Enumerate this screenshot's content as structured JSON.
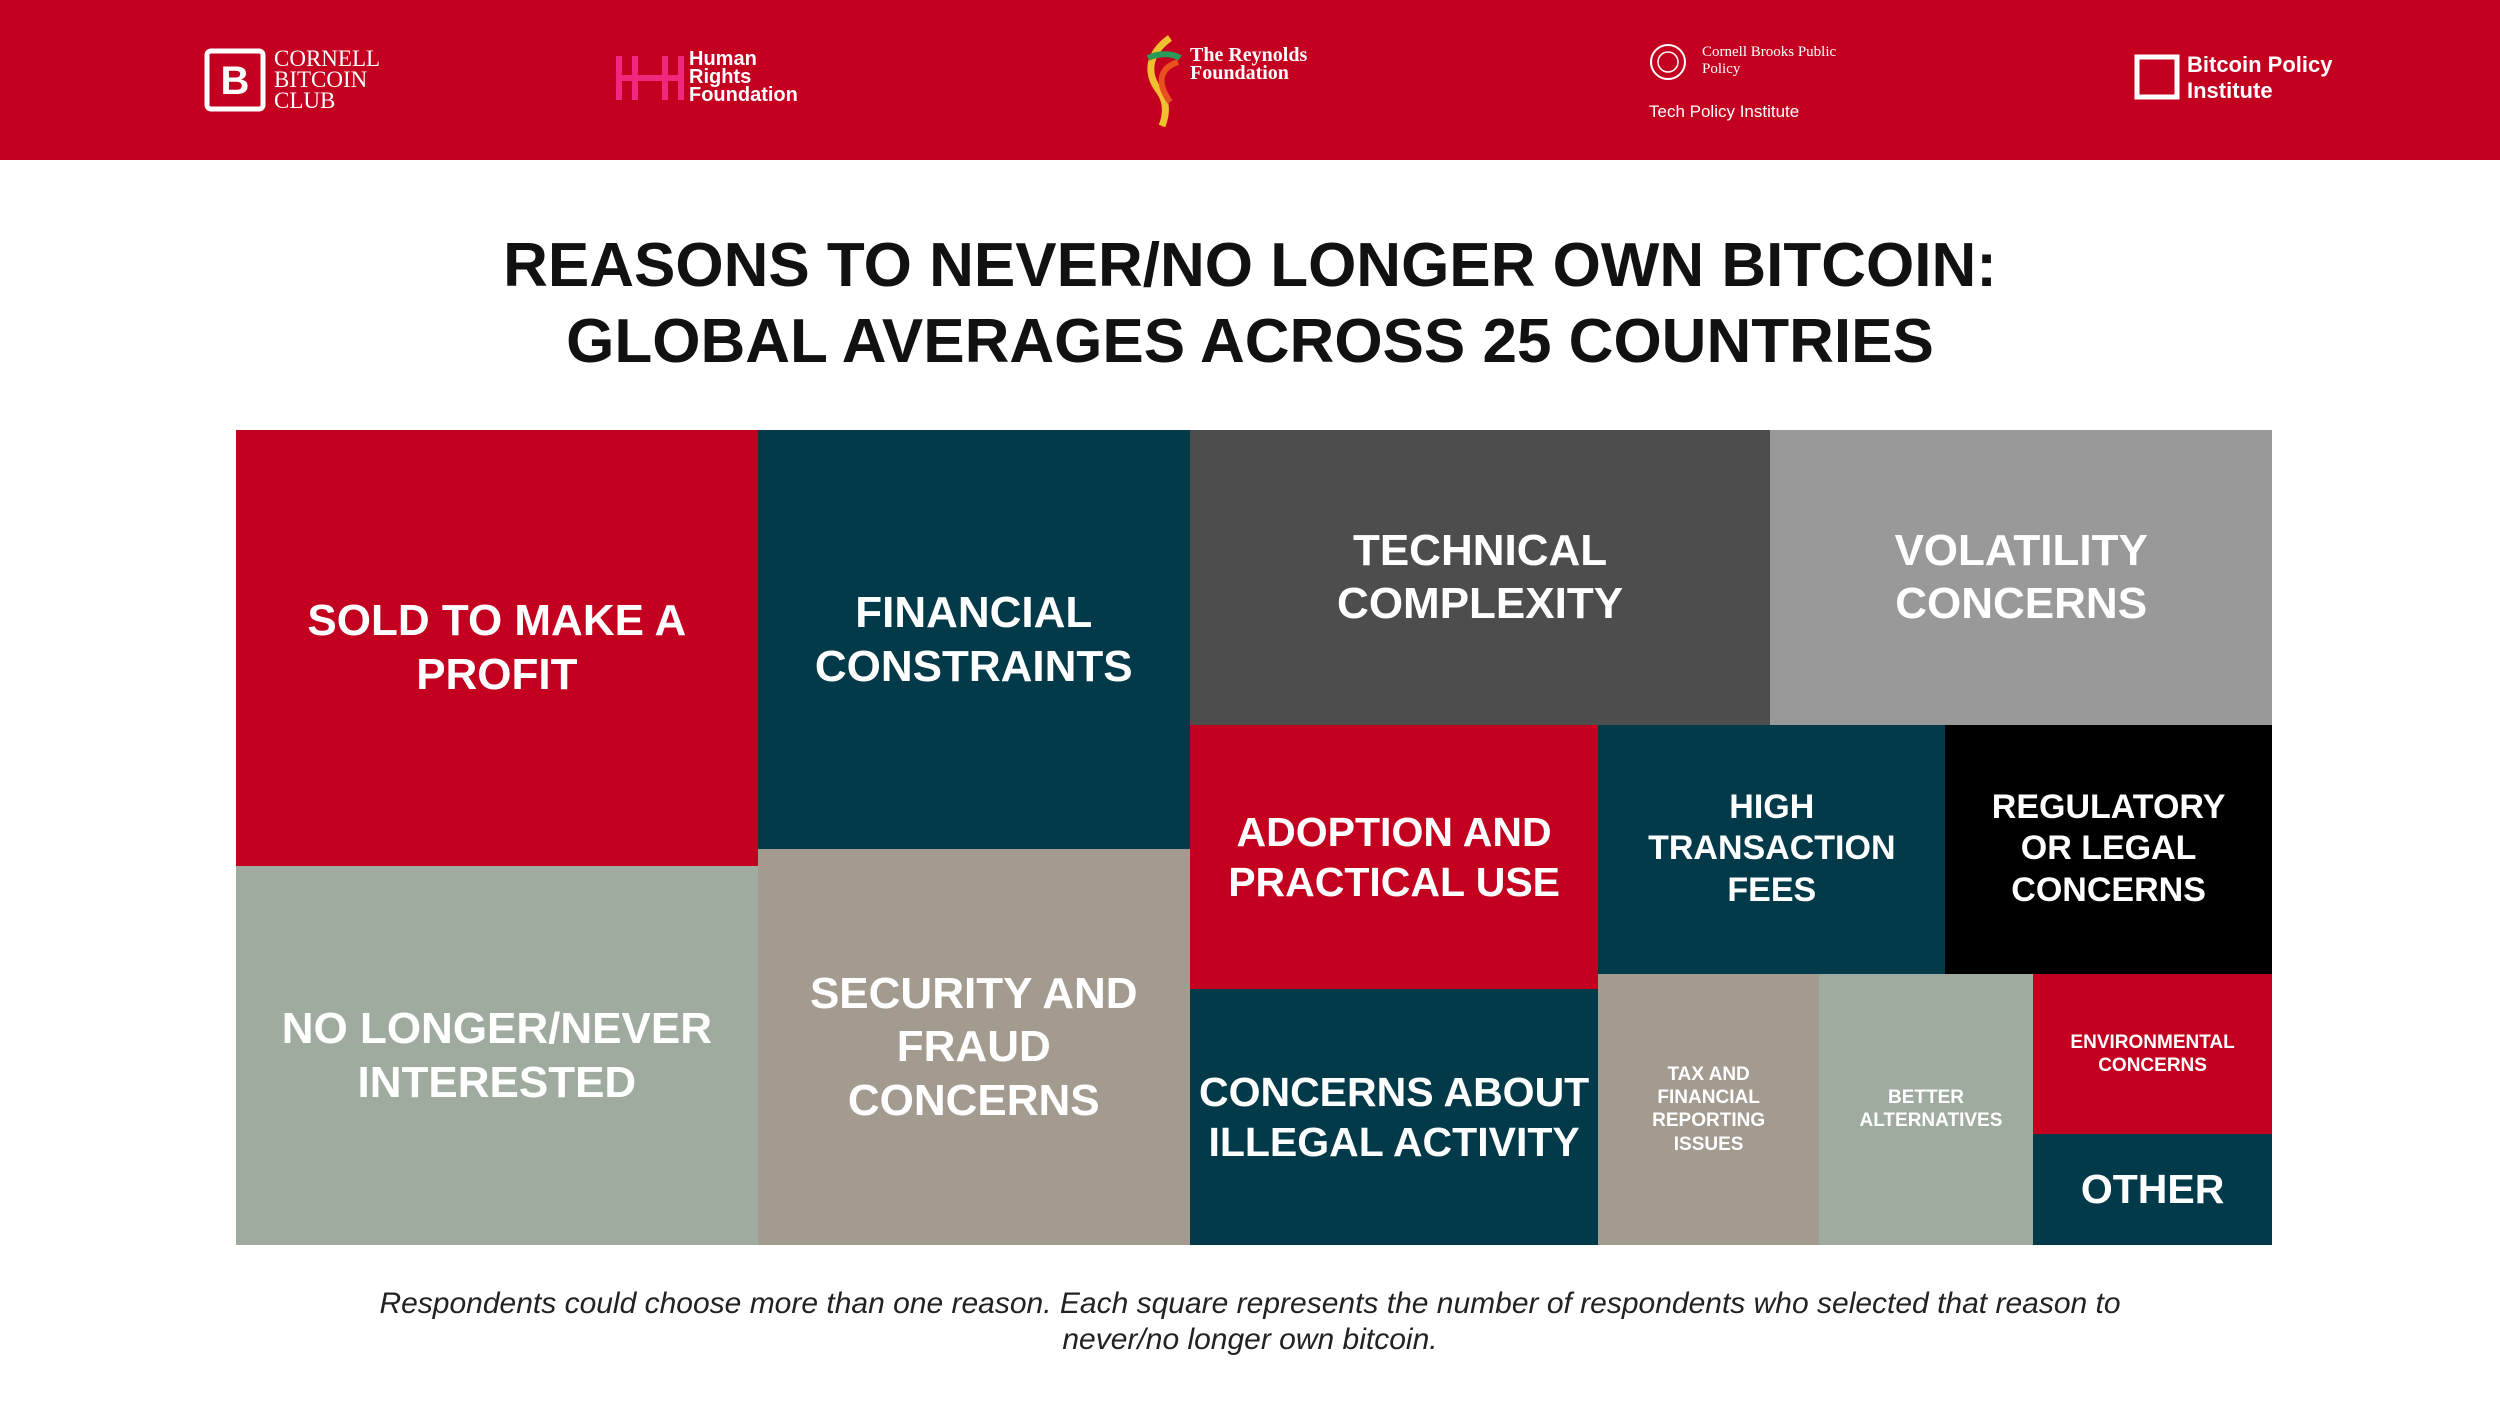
{
  "header": {
    "logos": [
      "CORNELL BITCOIN CLUB",
      "Human Rights Foundation",
      "The Reynolds Foundation",
      "Cornell Brooks Public Policy",
      "Tech Policy Institute",
      "Bitcoin Policy Institute"
    ]
  },
  "chart_data": {
    "type": "treemap",
    "title": "REASONS TO NEVER/NO LONGER OWN BITCOIN:",
    "subtitle": "GLOBAL AVERAGES ACROSS 25 COUNTRIES",
    "categories": [
      "SOLD TO MAKE A PROFIT",
      "NO LONGER/NEVER INTERESTED",
      "FINANCIAL CONSTRAINTS",
      "SECURITY AND FRAUD CONCERNS",
      "TECHNICAL COMPLEXITY",
      "VOLATILITY CONCERNS",
      "ADOPTION AND PRACTICAL USE",
      "CONCERNS ABOUT ILLEGAL ACTIVITY",
      "HIGH TRANSACTION FEES",
      "REGULATORY OR LEGAL CONCERNS",
      "TAX AND FINANCIAL REPORTING ISSUES",
      "BETTER ALTERNATIVES",
      "ENVIRONMENTAL CONCERNS",
      "OTHER"
    ],
    "values": [
      13.7,
      11.9,
      10.9,
      10.3,
      10.3,
      8.9,
      6.5,
      6.3,
      5.2,
      4.9,
      3.6,
      3.5,
      2.3,
      1.6
    ],
    "colors": [
      "#c3001f",
      "#a0aba0",
      "#023a4a",
      "#a39b90",
      "#4d4d4d",
      "#999999",
      "#c3001f",
      "#023a4a",
      "#023a4a",
      "#000000",
      "#a39b90",
      "#a0aba0",
      "#c3001f",
      "#023a4a"
    ],
    "footnote": "Respondents could choose more than one reason. Each square represents the number of respondents who selected that reason to never/no longer own bitcoin."
  }
}
